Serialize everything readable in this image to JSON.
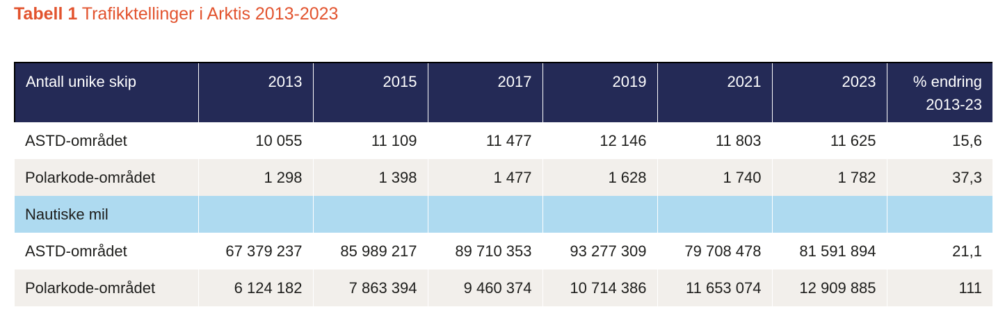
{
  "caption": {
    "bold": "Tabell 1",
    "text": "Trafikktellinger i Arktis 2013-2023"
  },
  "table": {
    "header": {
      "label": "Antall unike skip",
      "years": [
        "2013",
        "2015",
        "2017",
        "2019",
        "2021",
        "2023"
      ],
      "change_line1": "% endring",
      "change_line2": "2013-23"
    },
    "rows": [
      {
        "label": "ASTD-området",
        "values": [
          "10 055",
          "11 109",
          "11 477",
          "12 146",
          "11 803",
          "11 625"
        ],
        "change": "15,6"
      },
      {
        "label": "Polarkode-området",
        "values": [
          "1 298",
          "1 398",
          "1 477",
          "1 628",
          "1 740",
          "1 782"
        ],
        "change": "37,3"
      },
      {
        "label": "Nautiske mil",
        "values": [
          "",
          "",
          "",
          "",
          "",
          ""
        ],
        "change": ""
      },
      {
        "label": "ASTD-området",
        "values": [
          "67 379 237",
          "85 989 217",
          "89 710 353",
          "93 277 309",
          "79 708 478",
          "81 591 894"
        ],
        "change": "21,1"
      },
      {
        "label": "Polarkode-området",
        "values": [
          "6 124 182",
          "7 863 394",
          "9 460 374",
          "10 714 386",
          "11 653 074",
          "12 909 885"
        ],
        "change": "111"
      }
    ]
  },
  "colors": {
    "caption": "#e2532e",
    "header_bg": "#242a56",
    "stripe_grey": "#f2efeb",
    "section_blue": "#aedaf0"
  }
}
